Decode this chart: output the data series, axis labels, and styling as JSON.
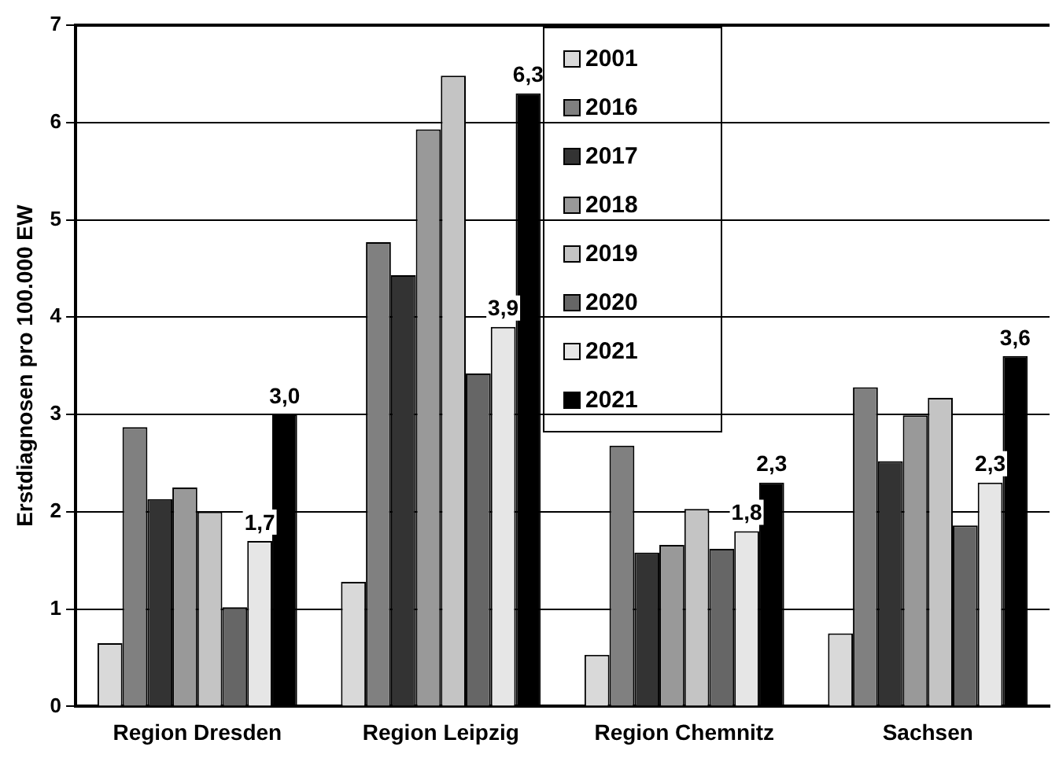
{
  "chart_data": {
    "type": "bar",
    "ylabel": "Erstdiagnosen pro 100.000 EW",
    "categories": [
      "Region Dresden",
      "Region Leipzig",
      "Region Chemnitz",
      "Sachsen"
    ],
    "series": [
      {
        "name": "2001",
        "color": "#d9d9d9",
        "values": [
          0.65,
          1.28,
          0.53,
          0.75
        ]
      },
      {
        "name": "2016",
        "color": "#808080",
        "values": [
          2.87,
          4.77,
          2.68,
          3.28
        ]
      },
      {
        "name": "2017",
        "color": "#333333",
        "values": [
          2.13,
          4.43,
          1.58,
          2.52
        ]
      },
      {
        "name": "2018",
        "color": "#999999",
        "values": [
          2.25,
          5.93,
          1.66,
          2.99
        ]
      },
      {
        "name": "2019",
        "color": "#c4c4c4",
        "values": [
          2.0,
          6.48,
          2.03,
          3.17
        ]
      },
      {
        "name": "2020",
        "color": "#666666",
        "values": [
          1.02,
          3.42,
          1.62,
          1.86
        ]
      },
      {
        "name": "2021",
        "color": "#e6e6e6",
        "values": [
          1.7,
          3.9,
          1.8,
          2.3
        ],
        "value_labels": [
          "1,7",
          "3,9",
          "1,8",
          "2,3"
        ]
      },
      {
        "name": "2021",
        "color": "#000000",
        "values": [
          3.0,
          6.3,
          2.3,
          3.6
        ],
        "value_labels": [
          "3,0",
          "6,3",
          "2,3",
          "3,6"
        ]
      }
    ],
    "ylim": [
      0,
      7
    ],
    "yticks": [
      0,
      1,
      2,
      3,
      4,
      5,
      6,
      7
    ],
    "grid": "y",
    "legend": "top"
  }
}
